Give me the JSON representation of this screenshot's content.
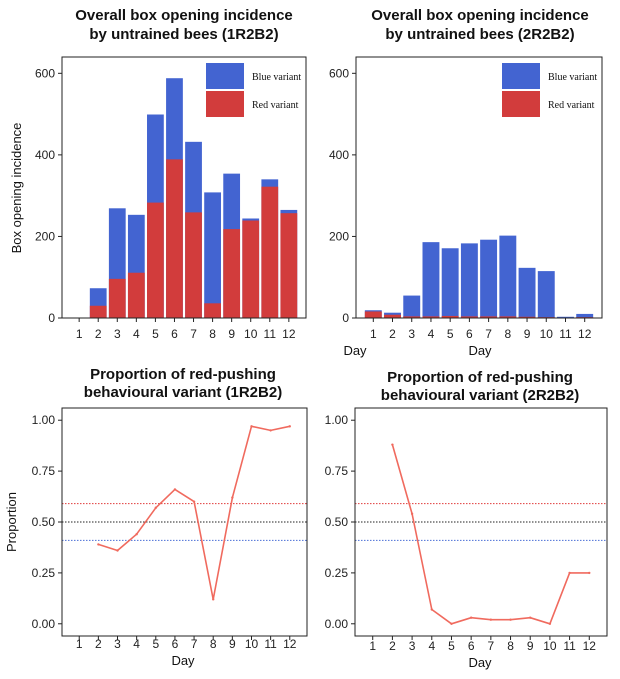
{
  "chart_data": [
    {
      "type": "bar",
      "title_line1": "Overall box opening incidence",
      "title_line2": "by untrained bees (1R2B2)",
      "xlabel": "Day",
      "ylabel": "Box opening incidence",
      "ylim": [
        0,
        640
      ],
      "yticks": [
        0,
        200,
        400,
        600
      ],
      "categories": [
        1,
        2,
        3,
        4,
        5,
        6,
        7,
        8,
        9,
        10,
        11,
        12
      ],
      "stacking": "overlay",
      "series": [
        {
          "name": "Blue variant",
          "color": "#4364d1",
          "values": [
            0,
            73,
            269,
            253,
            499,
            588,
            432,
            308,
            354,
            244,
            340,
            265
          ]
        },
        {
          "name": "Red variant",
          "color": "#d23c3c",
          "values": [
            0,
            30,
            96,
            111,
            283,
            389,
            259,
            36,
            218,
            239,
            322,
            257
          ]
        }
      ],
      "legend": [
        "Blue variant",
        "Red variant"
      ],
      "legend_position": "top-right"
    },
    {
      "type": "bar",
      "title_line1": "Overall box opening incidence",
      "title_line2": "by untrained bees (2R2B2)",
      "xlabel": "Day",
      "ylabel": "",
      "ylim": [
        0,
        640
      ],
      "yticks": [
        0,
        200,
        400,
        600
      ],
      "categories": [
        1,
        2,
        3,
        4,
        5,
        6,
        7,
        8,
        9,
        10,
        11,
        12
      ],
      "stacking": "overlay",
      "series": [
        {
          "name": "Blue variant",
          "color": "#4364d1",
          "values": [
            19,
            13,
            55,
            186,
            171,
            183,
            192,
            202,
            123,
            115,
            3,
            10
          ]
        },
        {
          "name": "Red variant",
          "color": "#d23c3c",
          "values": [
            16,
            8,
            4,
            4,
            5,
            4,
            4,
            4,
            3,
            2,
            1,
            2
          ]
        }
      ],
      "legend": [
        "Blue variant",
        "Red variant"
      ],
      "legend_position": "top-right"
    },
    {
      "type": "line",
      "title_line1": "Proportion of red-pushing",
      "title_line2": "behavioural variant (1R2B2)",
      "xlabel": "Day",
      "ylabel": "Proportion",
      "ylim": [
        -0.06,
        1.06
      ],
      "yticks": [
        "0.00",
        "0.25",
        "0.50",
        "0.75",
        "1.00"
      ],
      "x": [
        2,
        3,
        4,
        5,
        6,
        7,
        8,
        9,
        10,
        11,
        12
      ],
      "values": [
        0.39,
        0.36,
        0.44,
        0.57,
        0.66,
        0.6,
        0.12,
        0.62,
        0.97,
        0.95,
        0.97
      ],
      "line_color": "#f06a5e",
      "reference_lines": [
        {
          "value": 0.59,
          "color": "#e03a3a"
        },
        {
          "value": 0.5,
          "color": "#222222"
        },
        {
          "value": 0.41,
          "color": "#4a6fd6"
        }
      ]
    },
    {
      "type": "line",
      "title_line1": "Proportion of red-pushing",
      "title_line2": "behavioural variant (2R2B2)",
      "xlabel": "Day",
      "ylabel": "",
      "ylim": [
        -0.06,
        1.06
      ],
      "yticks": [
        "0.00",
        "0.25",
        "0.50",
        "0.75",
        "1.00"
      ],
      "x": [
        2,
        3,
        4,
        5,
        6,
        7,
        8,
        9,
        10,
        11,
        12
      ],
      "values": [
        0.88,
        0.54,
        0.07,
        0.0,
        0.03,
        0.02,
        0.02,
        0.03,
        0.0,
        0.25,
        0.25
      ],
      "line_color": "#f06a5e",
      "reference_lines": [
        {
          "value": 0.59,
          "color": "#e03a3a"
        },
        {
          "value": 0.5,
          "color": "#222222"
        },
        {
          "value": 0.41,
          "color": "#4a6fd6"
        }
      ]
    }
  ]
}
